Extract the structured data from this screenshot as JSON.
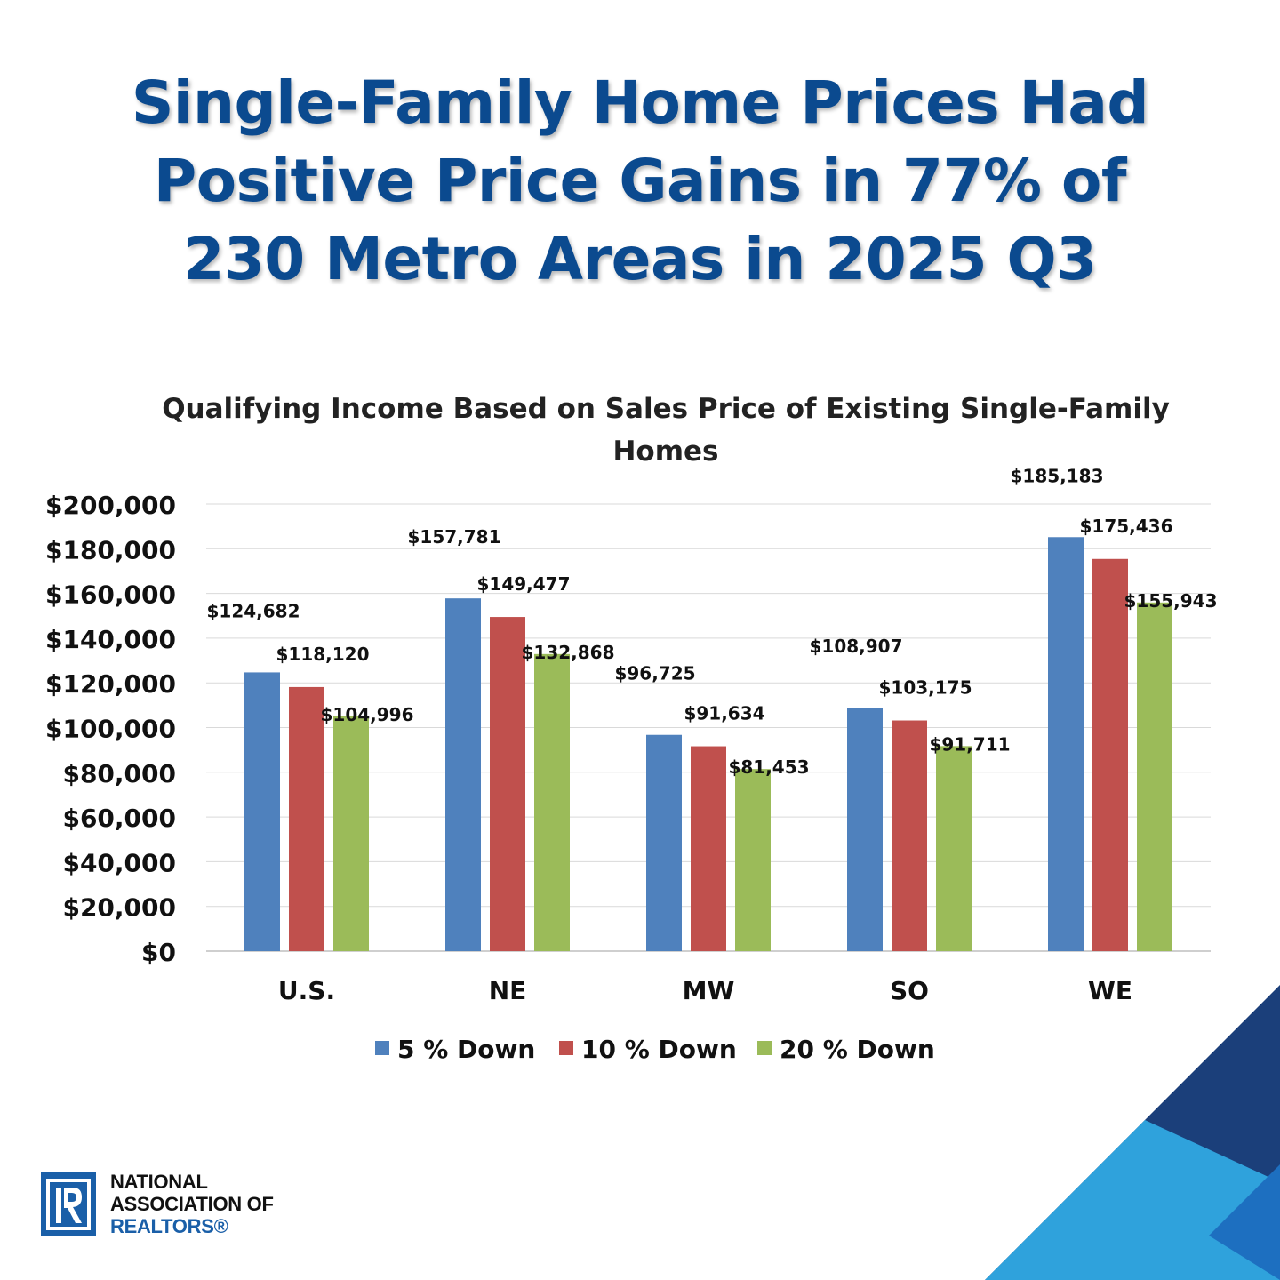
{
  "headline": {
    "line1": "Single-Family Home Prices Had",
    "line2": "Positive Price Gains in 77% of",
    "line3": "230 Metro Areas in 2025 Q3"
  },
  "colors": {
    "headline": "#0b4a8f",
    "series_5": "#4f81bd",
    "series_10": "#c0504d",
    "series_20": "#9bbb59",
    "brand_blue": "#1a5fa8",
    "corner_dark": "#1b3f7a",
    "corner_light": "#2fa2dc"
  },
  "chart_data": {
    "type": "bar",
    "title_line1": "Qualifying Income Based on Sales Price of Existing Single-Family",
    "title_line2": "Homes",
    "categories": [
      "U.S.",
      "NE",
      "MW",
      "SO",
      "WE"
    ],
    "series": [
      {
        "name": "5 % Down",
        "values": [
          124682,
          157781,
          96725,
          108907,
          185183
        ],
        "labels": [
          "$124,682",
          "$157,781",
          "$96,725",
          "$108,907",
          "$185,183"
        ]
      },
      {
        "name": "10 % Down",
        "values": [
          118120,
          149477,
          91634,
          103175,
          175436
        ],
        "labels": [
          "$118,120",
          "$149,477",
          "$91,634",
          "$103,175",
          "$175,436"
        ]
      },
      {
        "name": "20 % Down",
        "values": [
          104996,
          132868,
          81453,
          91711,
          155943
        ],
        "labels": [
          "$104,996",
          "$132,868",
          "$81,453",
          "$91,711",
          "$155,943"
        ]
      }
    ],
    "y_ticks": [
      "$0",
      "$20,000",
      "$40,000",
      "$60,000",
      "$80,000",
      "$100,000",
      "$120,000",
      "$140,000",
      "$160,000",
      "$180,000",
      "$200,000"
    ],
    "ylim": [
      0,
      200000
    ],
    "grid": true,
    "legend_position": "bottom"
  },
  "logo": {
    "line1": "NATIONAL",
    "line2": "ASSOCIATION OF",
    "line3": "REALTORS®"
  }
}
